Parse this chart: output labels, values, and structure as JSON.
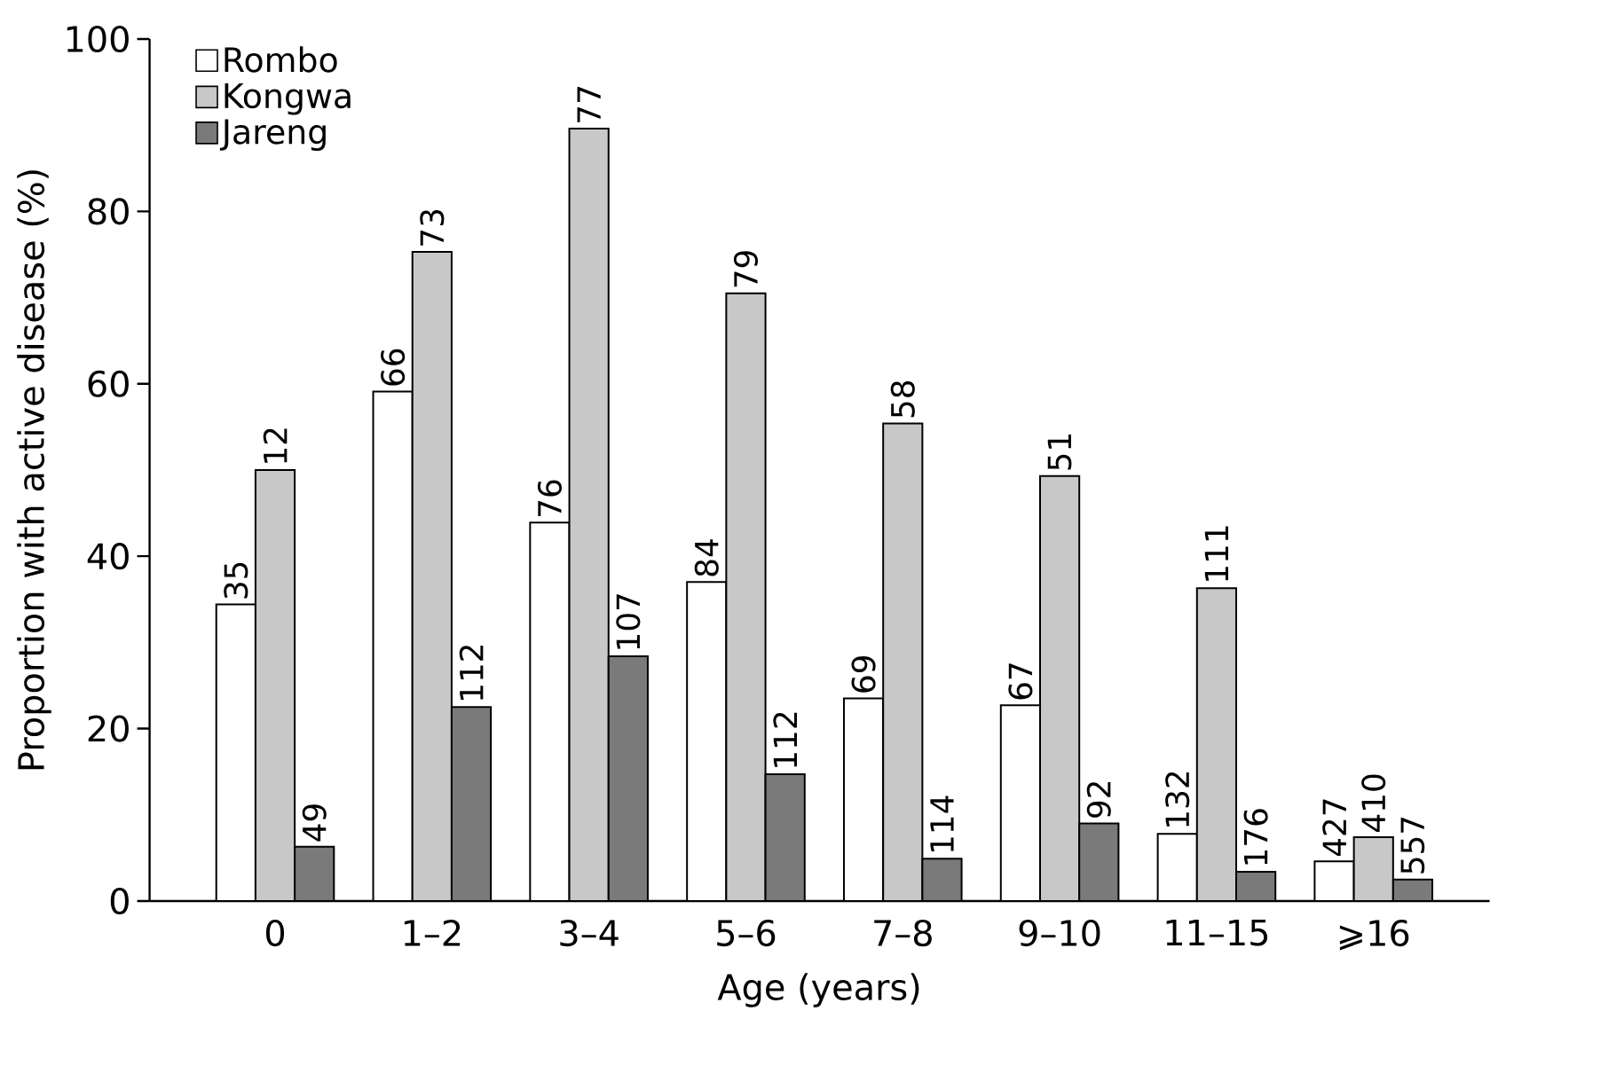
{
  "chart_data": {
    "type": "bar",
    "xlabel": "Age (years)",
    "ylabel": "Proportion with active disease (%)",
    "categories": [
      "0",
      "1–2",
      "3–4",
      "5–6",
      "7–8",
      "9–10",
      "11–15",
      "⩾16"
    ],
    "series": [
      {
        "name": "Rombo",
        "color": "#ffffff",
        "values": [
          34.4,
          59.1,
          43.9,
          37.0,
          23.5,
          22.7,
          7.8,
          4.6
        ]
      },
      {
        "name": "Kongwa",
        "color": "#c8c8c8",
        "values": [
          50.0,
          75.3,
          89.6,
          70.5,
          55.4,
          49.3,
          36.3,
          7.4
        ]
      },
      {
        "name": "Jareng",
        "color": "#7a7a7a",
        "values": [
          6.3,
          22.5,
          28.4,
          14.7,
          4.9,
          9.0,
          3.4,
          2.5
        ]
      }
    ],
    "annotations": [
      "35",
      "12",
      "49",
      "66",
      "73",
      "112",
      "76",
      "77",
      "107",
      "84",
      "79",
      "112",
      "69",
      "58",
      "114",
      "67",
      "51",
      "92",
      "132",
      "111",
      "176",
      "427",
      "410",
      "557"
    ],
    "ylim": [
      0,
      100
    ],
    "yticks": [
      0,
      20,
      40,
      60,
      80,
      100
    ],
    "legend": "top left"
  }
}
